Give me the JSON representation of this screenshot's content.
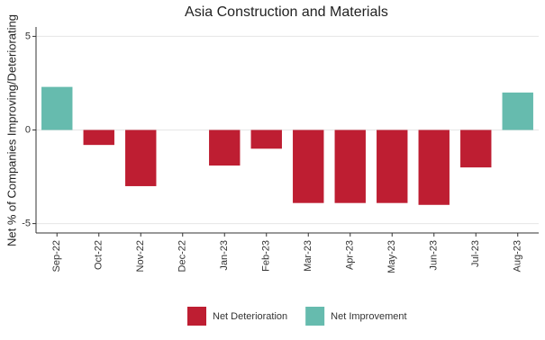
{
  "chart_data": {
    "type": "bar",
    "title": "Asia Construction and Materials",
    "y_label": "Net % of Companies Improving/Deteriorating",
    "categories": [
      "Sep-22",
      "Oct-22",
      "Nov-22",
      "Dec-22",
      "Jan-23",
      "Feb-23",
      "Mar-23",
      "Apr-23",
      "May-23",
      "Jun-23",
      "Jul-23",
      "Aug-23"
    ],
    "series": [
      {
        "name": "Net Deterioration",
        "color": "#be1e32",
        "values": [
          null,
          -0.8,
          -3,
          0,
          -1.9,
          -1,
          -3.9,
          -3.9,
          -3.9,
          -4,
          -2,
          null
        ]
      },
      {
        "name": "Net Improvement",
        "color": "#66bbae",
        "values": [
          2.3,
          null,
          null,
          null,
          null,
          null,
          null,
          null,
          null,
          null,
          null,
          2
        ]
      }
    ],
    "ylim": [
      -5.5,
      5.5
    ],
    "yticks": [
      -5,
      0,
      5
    ],
    "grid": true,
    "legend": "bottom"
  }
}
